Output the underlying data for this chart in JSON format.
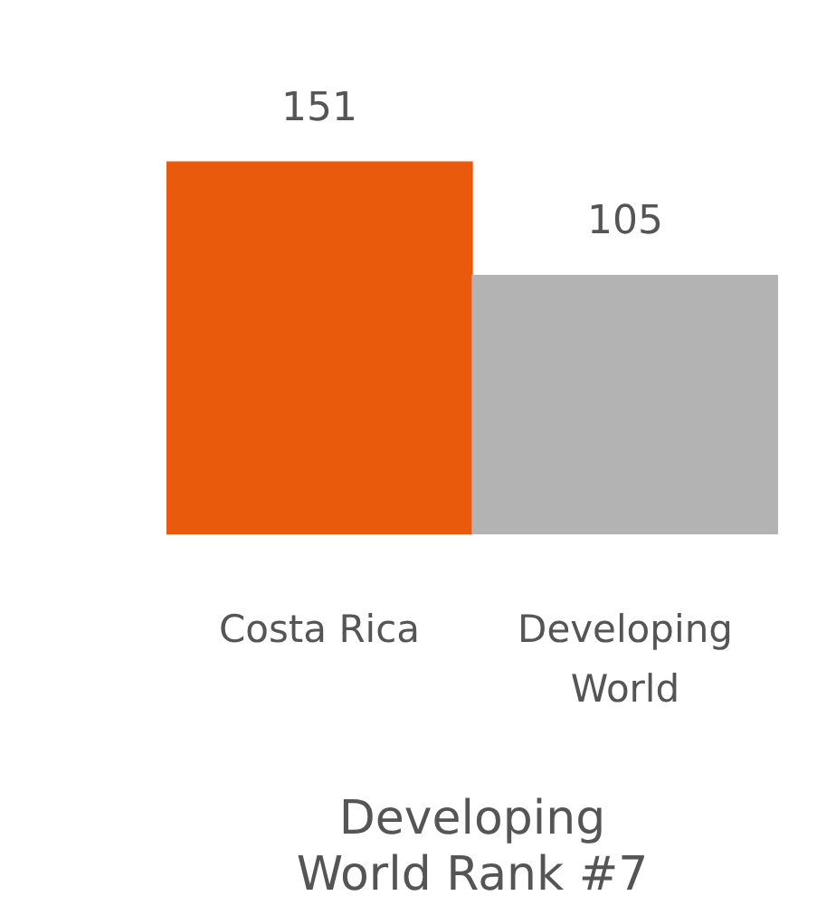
{
  "chart_data": {
    "type": "bar",
    "title": "Developing World Rank #7",
    "categories": [
      "Costa Rica",
      "Developing World"
    ],
    "values": [
      151,
      105
    ],
    "colors": [
      "#ea5a0c",
      "#b3b3b3"
    ],
    "data_labels": true
  }
}
